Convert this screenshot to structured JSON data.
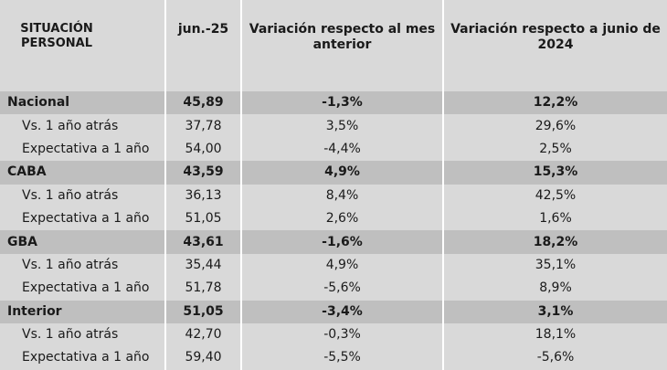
{
  "header": {
    "col1": "SITUACIÓN PERSONAL",
    "col2": "jun.-25",
    "col3": "Variación respecto al mes anterior",
    "col4": "Variación respecto a junio de 2024"
  },
  "rows": [
    {
      "label": "Nacional",
      "value": "45,89",
      "var_mes": "-1,3%",
      "var_anual": "12,2%"
    },
    {
      "label": "Vs. 1 año atrás",
      "value": "37,78",
      "var_mes": "3,5%",
      "var_anual": "29,6%"
    },
    {
      "label": "Expectativa a 1 año",
      "value": "54,00",
      "var_mes": "-4,4%",
      "var_anual": "2,5%"
    },
    {
      "label": "CABA",
      "value": "43,59",
      "var_mes": "4,9%",
      "var_anual": "15,3%"
    },
    {
      "label": "Vs. 1 año atrás",
      "value": "36,13",
      "var_mes": "8,4%",
      "var_anual": "42,5%"
    },
    {
      "label": "Expectativa a 1 año",
      "value": "51,05",
      "var_mes": "2,6%",
      "var_anual": "1,6%"
    },
    {
      "label": "GBA",
      "value": "43,61",
      "var_mes": "-1,6%",
      "var_anual": "18,2%"
    },
    {
      "label": "Vs. 1 año atrás",
      "value": "35,44",
      "var_mes": "4,9%",
      "var_anual": "35,1%"
    },
    {
      "label": "Expectativa a 1 año",
      "value": "51,78",
      "var_mes": "-5,6%",
      "var_anual": "8,9%"
    },
    {
      "label": "Interior",
      "value": "51,05",
      "var_mes": "-3,4%",
      "var_anual": "3,1%"
    },
    {
      "label": "Vs. 1 año atrás",
      "value": "42,70",
      "var_mes": "-0,3%",
      "var_anual": "18,1%"
    },
    {
      "label": "Expectativa a 1 año",
      "value": "59,40",
      "var_mes": "-5,5%",
      "var_anual": "-5,6%"
    }
  ]
}
